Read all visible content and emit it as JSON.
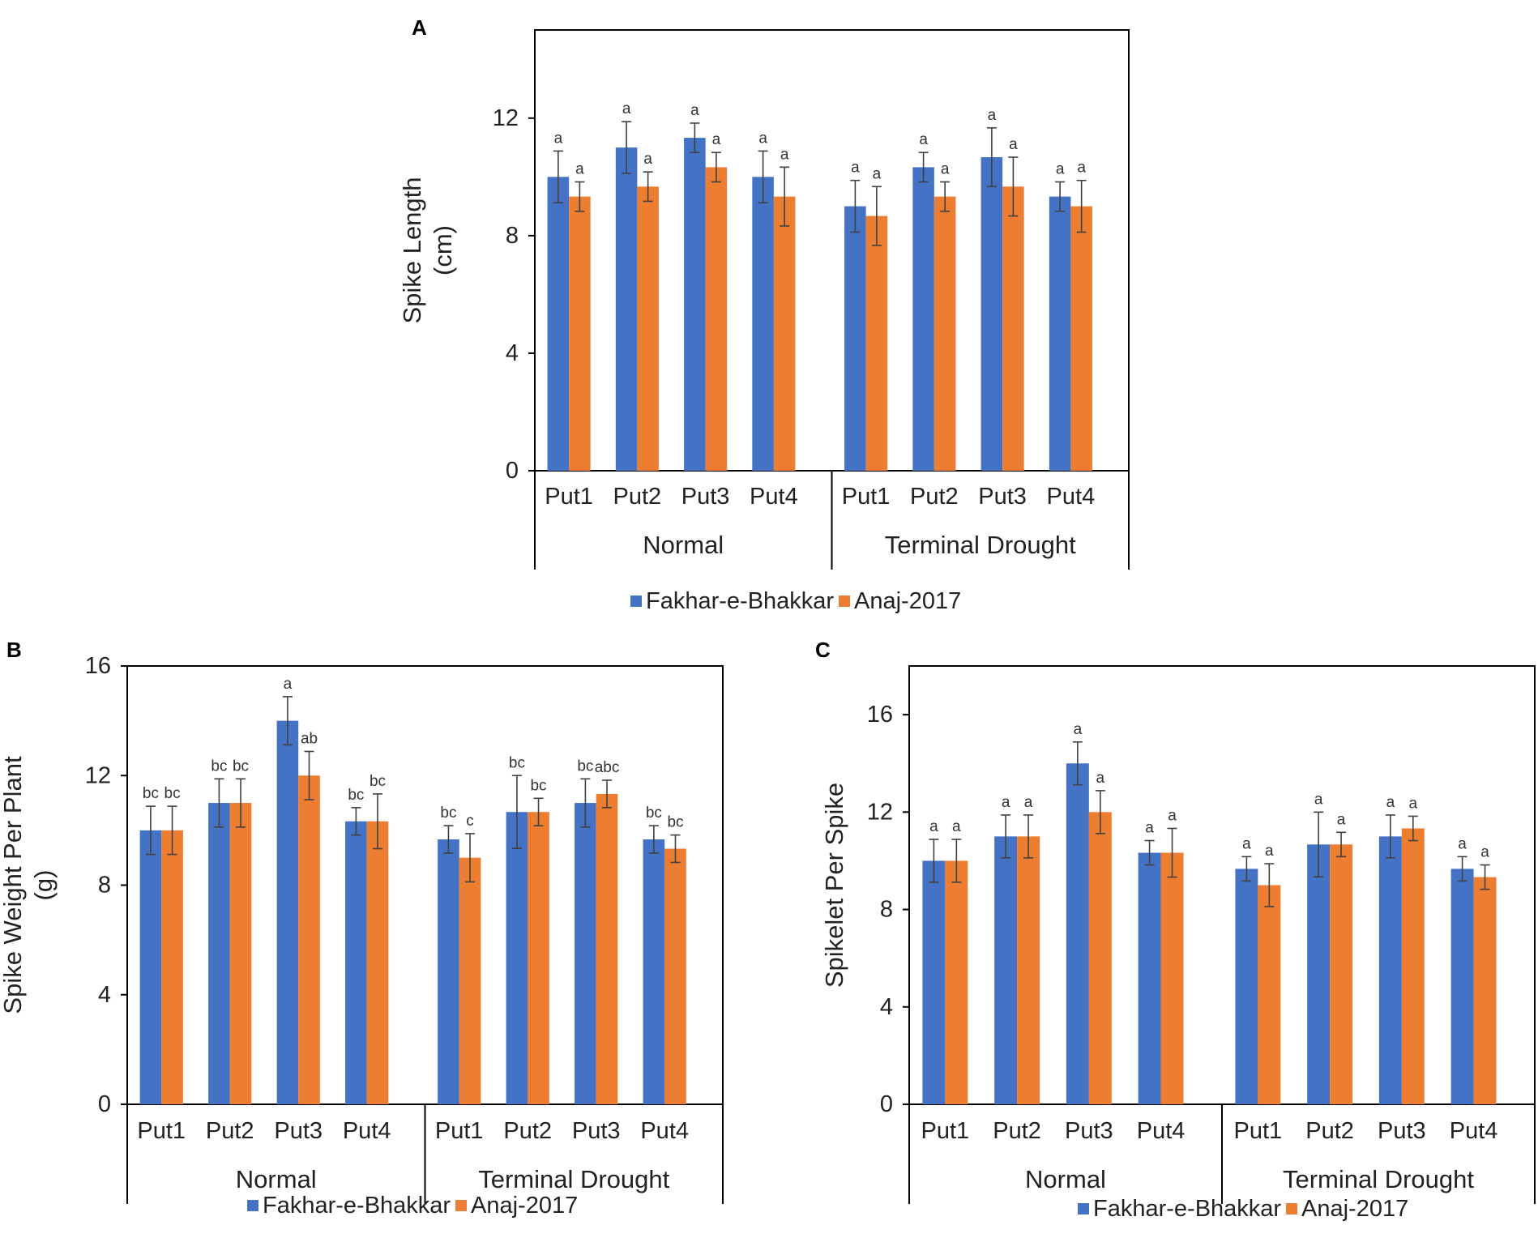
{
  "figure": {
    "legend": [
      "Fakhar-e-Bhakkar",
      "Anaj-2017"
    ],
    "colors": {
      "series1": "#4472C4",
      "series2": "#ED7D31",
      "axis": "#000000",
      "error": "#404040"
    }
  },
  "chart_data": [
    {
      "panel": "A",
      "type": "bar",
      "ylabel": [
        "Spike Length",
        "(cm)"
      ],
      "ylim": [
        0,
        15
      ],
      "yticks": [
        0,
        4,
        8,
        12
      ],
      "groups": [
        "Normal",
        "Terminal Drought"
      ],
      "categories": [
        "Put1",
        "Put2",
        "Put3",
        "Put4",
        "Put1",
        "Put2",
        "Put3",
        "Put4"
      ],
      "series": [
        {
          "name": "Fakhar-e-Bhakkar",
          "values": [
            10.0,
            11.0,
            11.33,
            10.0,
            9.0,
            10.33,
            10.67,
            9.33
          ],
          "errors": [
            0.88,
            0.88,
            0.5,
            0.88,
            0.88,
            0.5,
            1.0,
            0.5
          ],
          "labels": [
            "a",
            "a",
            "a",
            "a",
            "a",
            "a",
            "a",
            "a"
          ]
        },
        {
          "name": "Anaj-2017",
          "values": [
            9.33,
            9.67,
            10.33,
            9.33,
            8.67,
            9.33,
            9.67,
            9.0
          ],
          "errors": [
            0.5,
            0.5,
            0.5,
            1.0,
            1.0,
            0.5,
            1.0,
            0.88
          ],
          "labels": [
            "a",
            "a",
            "a",
            "a",
            "a",
            "a",
            "a",
            "a"
          ]
        }
      ]
    },
    {
      "panel": "B",
      "type": "bar",
      "ylabel": [
        "Spike Weight Per Plant",
        "(g)"
      ],
      "ylim": [
        0,
        16
      ],
      "yticks": [
        0,
        4,
        8,
        12,
        16
      ],
      "groups": [
        "Normal",
        "Terminal Drought"
      ],
      "categories": [
        "Put1",
        "Put2",
        "Put3",
        "Put4",
        "Put1",
        "Put2",
        "Put3",
        "Put4"
      ],
      "series": [
        {
          "name": "Fakhar-e-Bhakkar",
          "values": [
            10.0,
            11.0,
            14.0,
            10.33,
            9.67,
            10.67,
            11.0,
            9.67
          ],
          "errors": [
            0.88,
            0.88,
            0.88,
            0.5,
            0.5,
            1.33,
            0.88,
            0.5
          ],
          "labels": [
            "bc",
            "bc",
            "a",
            "bc",
            "bc",
            "bc",
            "bc",
            "bc"
          ]
        },
        {
          "name": "Anaj-2017",
          "values": [
            10.0,
            11.0,
            12.0,
            10.33,
            9.0,
            10.67,
            11.33,
            9.33
          ],
          "errors": [
            0.88,
            0.88,
            0.88,
            1.0,
            0.88,
            0.5,
            0.5,
            0.5
          ],
          "labels": [
            "bc",
            "bc",
            "ab",
            "bc",
            "c",
            "bc",
            "abc",
            "bc"
          ]
        }
      ]
    },
    {
      "panel": "C",
      "type": "bar",
      "ylabel": [
        "Spikelet Per Spike"
      ],
      "ylim": [
        0,
        18
      ],
      "yticks": [
        0,
        4,
        8,
        12,
        16
      ],
      "groups": [
        "Normal",
        "Terminal Drought"
      ],
      "categories": [
        "Put1",
        "Put2",
        "Put3",
        "Put4",
        "Put1",
        "Put2",
        "Put3",
        "Put4"
      ],
      "series": [
        {
          "name": "Fakhar-e-Bhakkar",
          "values": [
            10.0,
            11.0,
            14.0,
            10.33,
            9.67,
            10.67,
            11.0,
            9.67
          ],
          "errors": [
            0.88,
            0.88,
            0.88,
            0.5,
            0.5,
            1.33,
            0.88,
            0.5
          ],
          "labels": [
            "a",
            "a",
            "a",
            "a",
            "a",
            "a",
            "a",
            "a"
          ]
        },
        {
          "name": "Anaj-2017",
          "values": [
            10.0,
            11.0,
            12.0,
            10.33,
            9.0,
            10.67,
            11.33,
            9.33
          ],
          "errors": [
            0.88,
            0.88,
            0.88,
            1.0,
            0.88,
            0.5,
            0.5,
            0.5
          ],
          "labels": [
            "a",
            "a",
            "a",
            "a",
            "a",
            "a",
            "a",
            "a"
          ]
        }
      ]
    }
  ]
}
